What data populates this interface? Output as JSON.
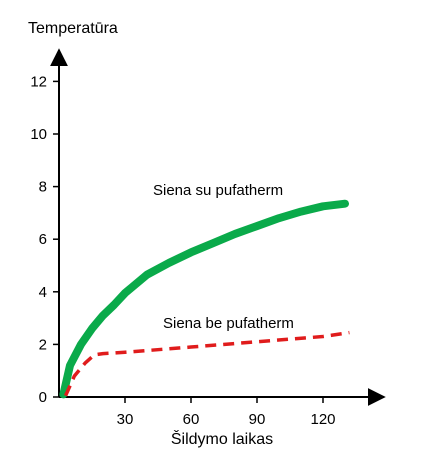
{
  "chart_data": {
    "type": "line",
    "ylabel": "Temperatūra",
    "xlabel": "Šildymo laikas",
    "x_ticks": [
      30,
      60,
      90,
      120
    ],
    "y_ticks": [
      0,
      2,
      4,
      6,
      8,
      10,
      12
    ],
    "xlim": [
      0,
      135
    ],
    "ylim": [
      0,
      13
    ],
    "grid": false,
    "series": [
      {
        "name": "Siena su pufatherm",
        "color": "#0aaa4a",
        "line_style": "solid",
        "x": [
          2,
          5,
          10,
          15,
          20,
          25,
          30,
          40,
          50,
          60,
          70,
          80,
          90,
          100,
          110,
          120,
          130
        ],
        "y": [
          0.1,
          1.2,
          2.0,
          2.6,
          3.1,
          3.5,
          3.95,
          4.65,
          5.1,
          5.5,
          5.85,
          6.2,
          6.5,
          6.8,
          7.05,
          7.25,
          7.35
        ]
      },
      {
        "name": "Siena be pufatherm",
        "color": "#e01c1c",
        "line_style": "dashed",
        "x": [
          3,
          7,
          12,
          16,
          20,
          30,
          60,
          90,
          120,
          132
        ],
        "y": [
          0.05,
          0.8,
          1.3,
          1.6,
          1.65,
          1.7,
          1.9,
          2.1,
          2.3,
          2.45
        ]
      }
    ]
  }
}
